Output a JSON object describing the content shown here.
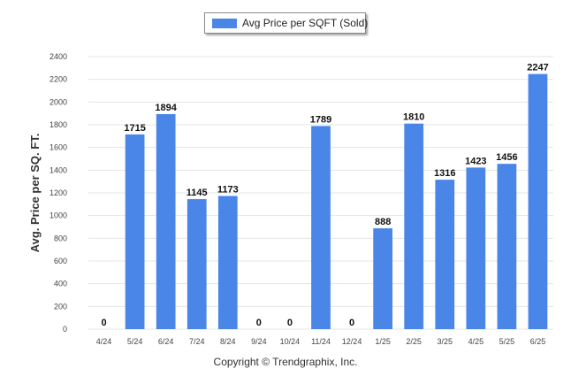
{
  "legend": {
    "label": "Avg Price per SQFT (Sold)"
  },
  "footer": {
    "copyright": "Copyright © Trendgraphix, Inc."
  },
  "colors": {
    "bar": "#4A86E8",
    "grid": "#e4e4e4",
    "axis_text": "#444444",
    "label_text": "#111111"
  },
  "chart_data": {
    "type": "bar",
    "title": "",
    "xlabel": "",
    "ylabel": "Avg. Price per SQ. FT.",
    "categories": [
      "4/24",
      "5/24",
      "6/24",
      "7/24",
      "8/24",
      "9/24",
      "10/24",
      "11/24",
      "12/24",
      "1/25",
      "2/25",
      "3/25",
      "4/25",
      "5/25",
      "6/25"
    ],
    "series": [
      {
        "name": "Avg Price per SQFT (Sold)",
        "values": [
          0,
          1715,
          1894,
          1145,
          1173,
          0,
          0,
          1789,
          0,
          888,
          1810,
          1316,
          1423,
          1456,
          2247
        ]
      }
    ],
    "ylim": [
      0,
      2400
    ],
    "yticks": [
      0,
      200,
      400,
      600,
      800,
      1000,
      1200,
      1400,
      1600,
      1800,
      2000,
      2200,
      2400
    ],
    "grid": true,
    "legend_position": "top-center",
    "data_labels": true
  }
}
